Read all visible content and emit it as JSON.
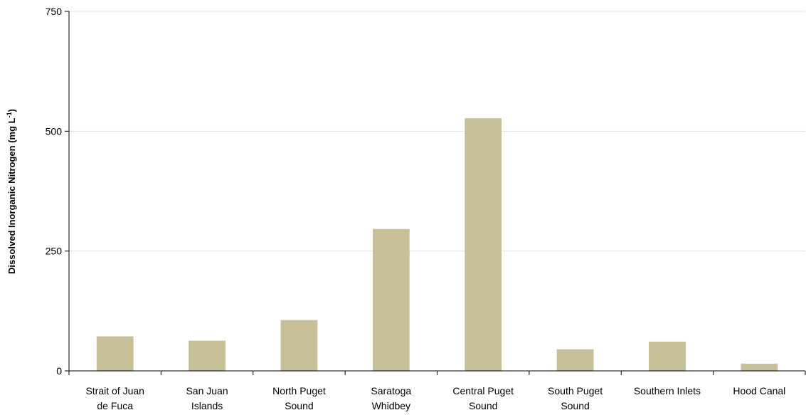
{
  "chart_data": {
    "type": "bar",
    "title": "",
    "xlabel": "",
    "ylabel": "Dissolved Inorganic Nitrogen (mg L",
    "ylabel_superscript": "-1",
    "ylabel_suffix": ")",
    "categories": [
      [
        "Strait of Juan",
        "de Fuca"
      ],
      [
        "San Juan",
        "Islands"
      ],
      [
        "North Puget",
        "Sound"
      ],
      [
        "Saratoga",
        "Whidbey"
      ],
      [
        "Central Puget",
        "Sound"
      ],
      [
        "South Puget",
        "Sound"
      ],
      [
        "Southern Inlets"
      ],
      [
        "Hood Canal"
      ]
    ],
    "values": [
      72,
      63,
      106,
      296,
      527,
      45,
      61,
      15
    ],
    "ylim": [
      0,
      750
    ],
    "yticks": [
      0,
      250,
      500,
      750
    ],
    "grid": true,
    "bar_color": "#c6bf98",
    "grid_color": "#e3e3e3",
    "axis_color": "#000000"
  }
}
